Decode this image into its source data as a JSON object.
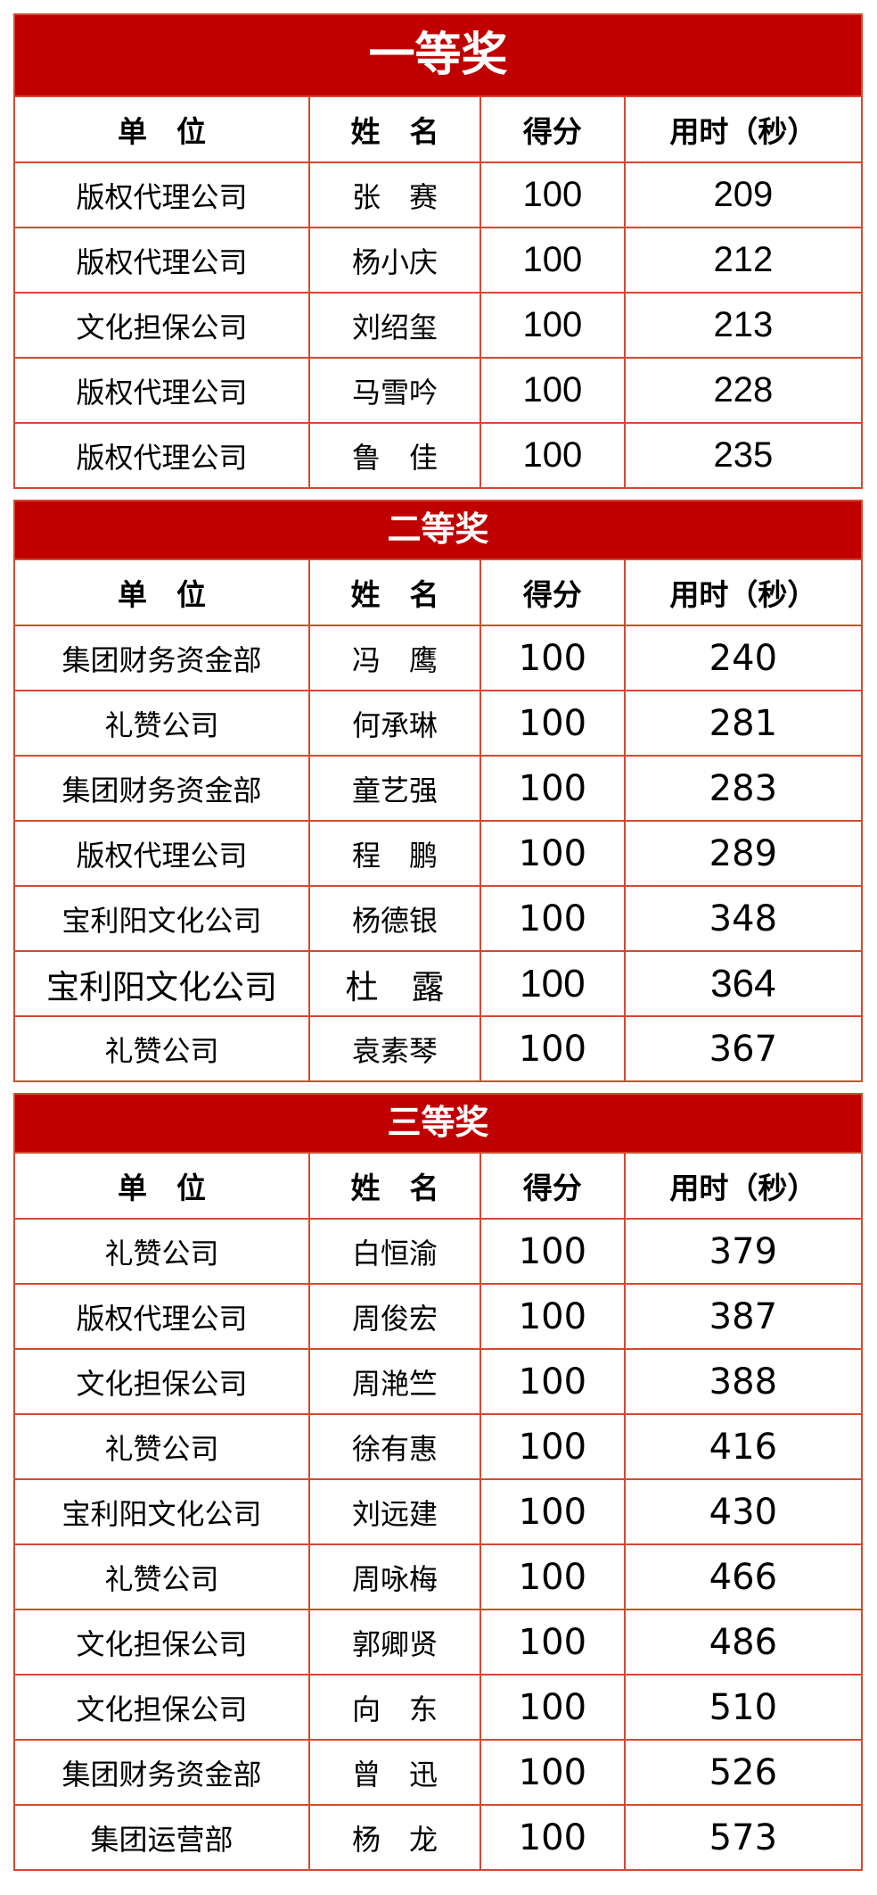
{
  "colors": {
    "band_bg": "#C00000",
    "band_text": "#FFFFFF",
    "grid": "#D5492F",
    "text": "#000000"
  },
  "columns": [
    "单　位",
    "姓　名",
    "得分",
    "用时（秒）"
  ],
  "sections": [
    {
      "title": "一等奖",
      "rows": [
        {
          "unit": "版权代理公司",
          "name": "张　赛",
          "score": "100",
          "time": "209"
        },
        {
          "unit": "版权代理公司",
          "name": "杨小庆",
          "score": "100",
          "time": "212"
        },
        {
          "unit": "文化担保公司",
          "name": "刘绍玺",
          "score": "100",
          "time": "213"
        },
        {
          "unit": "版权代理公司",
          "name": "马雪吟",
          "score": "100",
          "time": "228"
        },
        {
          "unit": "版权代理公司",
          "name": "鲁　佳",
          "score": "100",
          "time": "235"
        }
      ]
    },
    {
      "title": "二等奖",
      "rows": [
        {
          "unit": "集团财务资金部",
          "name": "冯　鹰",
          "score": "100",
          "time": "240"
        },
        {
          "unit": "礼赞公司",
          "name": "何承琳",
          "score": "100",
          "time": "281"
        },
        {
          "unit": "集团财务资金部",
          "name": "童艺强",
          "score": "100",
          "time": "283"
        },
        {
          "unit": "版权代理公司",
          "name": "程　鹏",
          "score": "100",
          "time": "289"
        },
        {
          "unit": "宝利阳文化公司",
          "name": "杨德银",
          "score": "100",
          "time": "348"
        },
        {
          "unit": "宝利阳文化公司",
          "name": "杜　露",
          "score": "100",
          "time": "364",
          "large": true
        },
        {
          "unit": "礼赞公司",
          "name": "袁素琴",
          "score": "100",
          "time": "367"
        }
      ]
    },
    {
      "title": "三等奖",
      "rows": [
        {
          "unit": "礼赞公司",
          "name": "白恒渝",
          "score": "100",
          "time": "379"
        },
        {
          "unit": "版权代理公司",
          "name": "周俊宏",
          "score": "100",
          "time": "387"
        },
        {
          "unit": "文化担保公司",
          "name": "周滟竺",
          "score": "100",
          "time": "388"
        },
        {
          "unit": "礼赞公司",
          "name": "徐有惠",
          "score": "100",
          "time": "416"
        },
        {
          "unit": "宝利阳文化公司",
          "name": "刘远建",
          "score": "100",
          "time": "430"
        },
        {
          "unit": "礼赞公司",
          "name": "周咏梅",
          "score": "100",
          "time": "466"
        },
        {
          "unit": "文化担保公司",
          "name": "郭卿贤",
          "score": "100",
          "time": "486"
        },
        {
          "unit": "文化担保公司",
          "name": "向　东",
          "score": "100",
          "time": "510"
        },
        {
          "unit": "集团财务资金部",
          "name": "曾　迅",
          "score": "100",
          "time": "526"
        },
        {
          "unit": "集团运营部",
          "name": "杨　龙",
          "score": "100",
          "time": "573"
        }
      ]
    }
  ]
}
